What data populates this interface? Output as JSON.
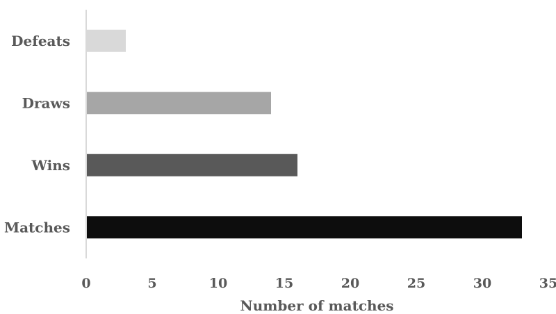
{
  "chart_data": {
    "type": "bar",
    "orientation": "horizontal",
    "title": "",
    "xlabel": "Number of matches",
    "ylabel": "",
    "categories": [
      "Defeats",
      "Draws",
      "Wins",
      "Matches"
    ],
    "values": [
      3,
      14,
      16,
      33
    ],
    "bar_colors": [
      "#d9d9d9",
      "#a6a6a6",
      "#595959",
      "#0d0d0d"
    ],
    "xlim": [
      0,
      35
    ],
    "xticks": [
      "0",
      "5",
      "10",
      "15",
      "20",
      "25",
      "30",
      "35"
    ],
    "grid": false,
    "legend": "none"
  }
}
